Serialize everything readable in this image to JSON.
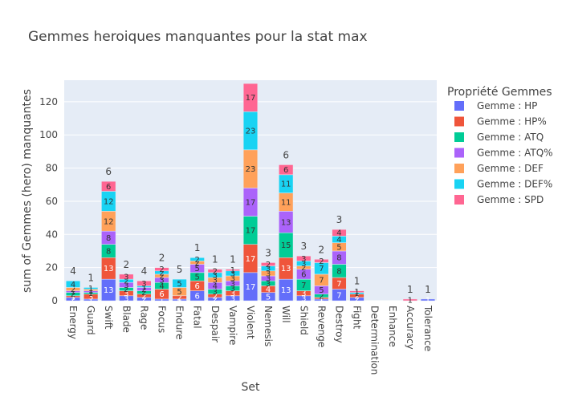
{
  "chart_data": {
    "type": "bar",
    "title": "Gemmes heroiques manquantes pour la stat max",
    "xlabel": "Set",
    "ylabel": "sum of Gemmes (hero) manquantes",
    "ylim": [
      0,
      133
    ],
    "yticks": [
      0,
      20,
      40,
      60,
      80,
      100,
      120
    ],
    "grid": true,
    "legend_title": "Propriété Gemmes",
    "legend_position": "right",
    "categories": [
      "Energy",
      "Guard",
      "Swift",
      "Blade",
      "Rage",
      "Focus",
      "Endure",
      "Fatal",
      "Despair",
      "Vampire",
      "Violent",
      "Nemesis",
      "Will",
      "Shield",
      "Revenge",
      "Destroy",
      "Fight",
      "Determination",
      "Enhance",
      "Accuracy",
      "Tolerance"
    ],
    "totals": [
      "4",
      "1",
      "6",
      "2",
      "4",
      "2",
      "5",
      "1",
      "1",
      "1",
      "",
      "3",
      "6",
      "3",
      "2",
      "3",
      "1",
      "",
      "",
      "1",
      "1"
    ],
    "series": [
      {
        "name": "Gemme : HP",
        "color": "#636efa",
        "values": [
          2,
          1,
          13,
          3,
          2,
          1,
          1,
          6,
          2,
          3,
          17,
          5,
          13,
          3,
          1,
          7,
          2,
          0,
          0,
          0,
          1
        ]
      },
      {
        "name": "Gemme : HP%",
        "color": "#ef553b",
        "values": [
          1,
          3,
          13,
          3,
          2,
          6,
          2,
          6,
          2,
          3,
          17,
          4,
          13,
          3,
          1,
          7,
          2,
          0,
          0,
          0,
          0
        ]
      },
      {
        "name": "Gemme : ATQ",
        "color": "#00cc96",
        "values": [
          2,
          1,
          8,
          2,
          2,
          4,
          0,
          5,
          3,
          3,
          17,
          3,
          15,
          7,
          2,
          8,
          0,
          0,
          0,
          0,
          0
        ]
      },
      {
        "name": "Gemme : ATQ%",
        "color": "#ab63fa",
        "values": [
          1,
          1,
          8,
          3,
          2,
          3,
          0,
          5,
          4,
          3,
          17,
          3,
          13,
          6,
          5,
          8,
          0,
          0,
          0,
          0,
          0
        ]
      },
      {
        "name": "Gemme : DEF",
        "color": "#ffa15a",
        "values": [
          2,
          1,
          12,
          0,
          0,
          2,
          5,
          2,
          3,
          3,
          23,
          3,
          11,
          2,
          7,
          5,
          0,
          0,
          0,
          0,
          0
        ]
      },
      {
        "name": "Gemme : DEF%",
        "color": "#19d3f3",
        "values": [
          4,
          1,
          12,
          2,
          1,
          2,
          5,
          2,
          3,
          3,
          23,
          3,
          11,
          3,
          7,
          4,
          1,
          0,
          0,
          0,
          0
        ]
      },
      {
        "name": "Gemme : SPD",
        "color": "#ff6692",
        "values": [
          0,
          0,
          6,
          3,
          3,
          2,
          0,
          0,
          2,
          1,
          17,
          2,
          6,
          3,
          2,
          4,
          1,
          0,
          0,
          1,
          0
        ]
      }
    ]
  }
}
